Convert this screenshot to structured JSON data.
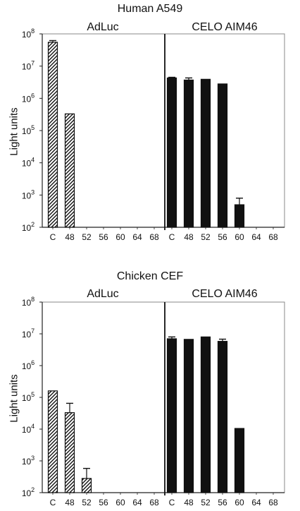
{
  "chart_data": [
    {
      "type": "bar",
      "title": "Human A549",
      "ylabel": "Light units",
      "yscale": "log",
      "ylim": [
        100,
        100000000
      ],
      "y_ticks": [
        {
          "base": "10",
          "exp": "2",
          "value": 100
        },
        {
          "base": "10",
          "exp": "3",
          "value": 1000
        },
        {
          "base": "10",
          "exp": "4",
          "value": 10000
        },
        {
          "base": "10",
          "exp": "5",
          "value": 100000
        },
        {
          "base": "10",
          "exp": "6",
          "value": 1000000
        },
        {
          "base": "10",
          "exp": "7",
          "value": 10000000
        },
        {
          "base": "10",
          "exp": "8",
          "value": 100000000
        }
      ],
      "groups": [
        {
          "name": "AdLuc",
          "pattern": "hatched",
          "categories": [
            "C",
            "48",
            "52",
            "56",
            "60",
            "64",
            "68"
          ],
          "values": [
            55000000,
            330000,
            null,
            null,
            null,
            null,
            null
          ],
          "error_upper": [
            62000000,
            null,
            null,
            null,
            null,
            null,
            null
          ]
        },
        {
          "name": "CELO AIM46",
          "pattern": "solid",
          "categories": [
            "C",
            "48",
            "52",
            "56",
            "60",
            "64",
            "68"
          ],
          "values": [
            4300000,
            3700000,
            3900000,
            2800000,
            500,
            null,
            null
          ],
          "error_upper": [
            4500000,
            4300000,
            null,
            null,
            800,
            null,
            null
          ]
        }
      ]
    },
    {
      "type": "bar",
      "title": "Chicken CEF",
      "ylabel": "Light units",
      "yscale": "log",
      "ylim": [
        100,
        100000000
      ],
      "y_ticks": [
        {
          "base": "10",
          "exp": "2",
          "value": 100
        },
        {
          "base": "10",
          "exp": "3",
          "value": 1000
        },
        {
          "base": "10",
          "exp": "4",
          "value": 10000
        },
        {
          "base": "10",
          "exp": "5",
          "value": 100000
        },
        {
          "base": "10",
          "exp": "6",
          "value": 1000000
        },
        {
          "base": "10",
          "exp": "7",
          "value": 10000000
        },
        {
          "base": "10",
          "exp": "8",
          "value": 100000000
        }
      ],
      "groups": [
        {
          "name": "AdLuc",
          "pattern": "hatched",
          "categories": [
            "C",
            "48",
            "52",
            "56",
            "60",
            "64",
            "68"
          ],
          "values": [
            160000,
            33000,
            280,
            null,
            null,
            null,
            null
          ],
          "error_upper": [
            null,
            65000,
            580,
            null,
            null,
            null,
            null
          ]
        },
        {
          "name": "CELO AIM46",
          "pattern": "solid",
          "categories": [
            "C",
            "48",
            "52",
            "56",
            "60",
            "64",
            "68"
          ],
          "values": [
            7000000,
            6700000,
            8000000,
            5800000,
            10500,
            null,
            null
          ],
          "error_upper": [
            8000000,
            null,
            null,
            6800000,
            null,
            null,
            null
          ]
        }
      ]
    }
  ],
  "colors": {
    "solid_bar": "#111111",
    "hatch": "#111111",
    "axis": "#222222"
  }
}
